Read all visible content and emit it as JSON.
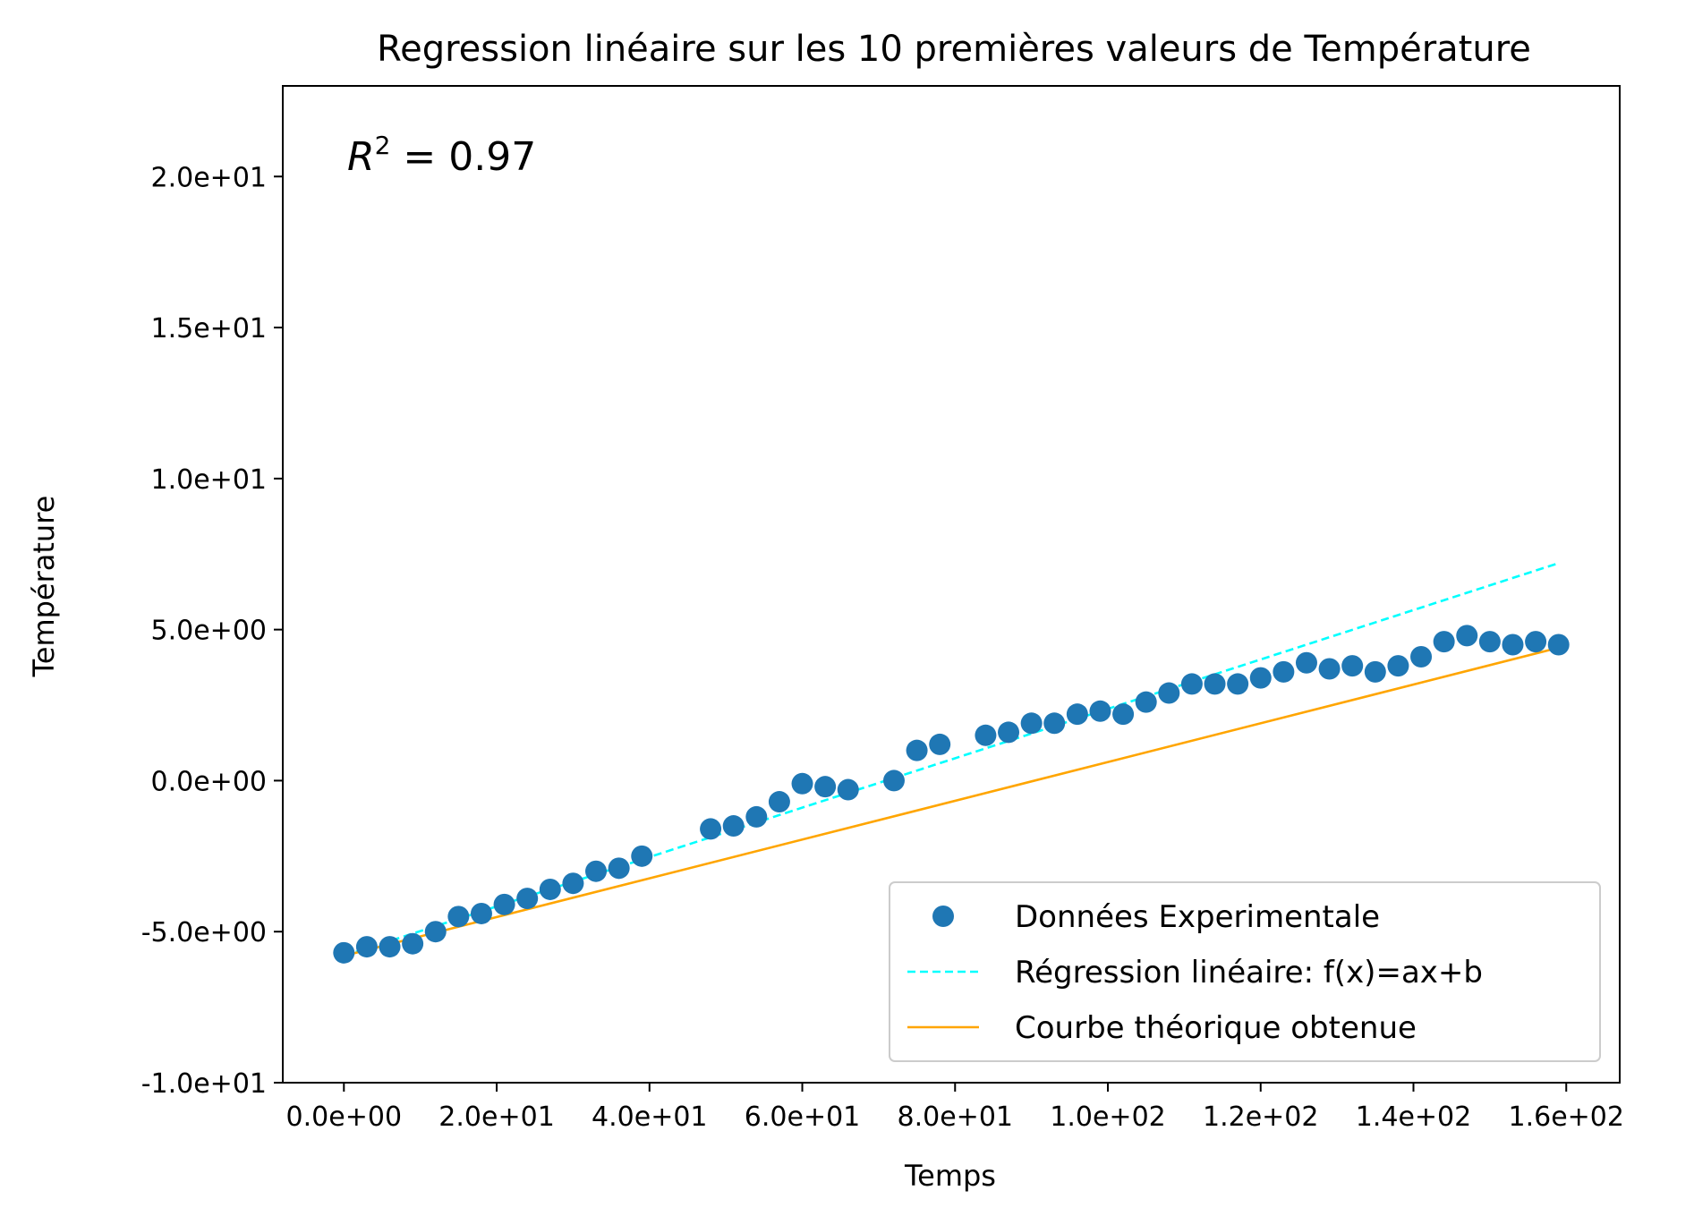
{
  "chart_data": {
    "type": "scatter",
    "title": "Regression linéaire sur les 10 premières valeurs de Température",
    "xlabel": "Temps",
    "ylabel": "Température",
    "xlim": [
      -8,
      167
    ],
    "ylim": [
      -10,
      23
    ],
    "x_ticks": [
      0,
      20,
      40,
      60,
      80,
      100,
      120,
      140,
      160
    ],
    "x_tick_labels": [
      "0.0e+00",
      "2.0e+01",
      "4.0e+01",
      "6.0e+01",
      "8.0e+01",
      "1.0e+02",
      "1.2e+02",
      "1.4e+02",
      "1.6e+02"
    ],
    "y_ticks": [
      -10,
      -5,
      0,
      5,
      10,
      15,
      20
    ],
    "y_tick_labels": [
      "-1.0e+01",
      "-5.0e+00",
      "0.0e+00",
      "5.0e+00",
      "1.0e+01",
      "1.5e+01",
      "2.0e+01"
    ],
    "annotation": {
      "var": "R",
      "sup": "2",
      "rest": " = 0.97"
    },
    "legend_position": "lower-right",
    "grid": false,
    "series": [
      {
        "name": "Données Experimentale",
        "kind": "scatter",
        "color": "#1f77b4",
        "points": [
          [
            0,
            -5.7
          ],
          [
            3,
            -5.5
          ],
          [
            6,
            -5.5
          ],
          [
            9,
            -5.4
          ],
          [
            12,
            -5.0
          ],
          [
            15,
            -4.5
          ],
          [
            18,
            -4.4
          ],
          [
            21,
            -4.1
          ],
          [
            24,
            -3.9
          ],
          [
            27,
            -3.6
          ],
          [
            30,
            -3.4
          ],
          [
            33,
            -3.0
          ],
          [
            36,
            -2.9
          ],
          [
            39,
            -2.5
          ],
          [
            48,
            -1.6
          ],
          [
            51,
            -1.5
          ],
          [
            54,
            -1.2
          ],
          [
            57,
            -0.7
          ],
          [
            60,
            -0.1
          ],
          [
            63,
            -0.2
          ],
          [
            66,
            -0.3
          ],
          [
            72,
            0.0
          ],
          [
            75,
            1.0
          ],
          [
            78,
            1.2
          ],
          [
            84,
            1.5
          ],
          [
            87,
            1.6
          ],
          [
            90,
            1.9
          ],
          [
            93,
            1.9
          ],
          [
            96,
            2.2
          ],
          [
            99,
            2.3
          ],
          [
            102,
            2.2
          ],
          [
            105,
            2.6
          ],
          [
            108,
            2.9
          ],
          [
            111,
            3.2
          ],
          [
            114,
            3.2
          ],
          [
            117,
            3.2
          ],
          [
            120,
            3.4
          ],
          [
            123,
            3.6
          ],
          [
            126,
            3.9
          ],
          [
            129,
            3.7
          ],
          [
            132,
            3.8
          ],
          [
            135,
            3.6
          ],
          [
            138,
            3.8
          ],
          [
            141,
            4.1
          ],
          [
            144,
            4.6
          ],
          [
            147,
            4.8
          ],
          [
            150,
            4.6
          ],
          [
            153,
            4.5
          ],
          [
            156,
            4.6
          ],
          [
            159,
            4.5
          ]
        ]
      },
      {
        "name": "Régression linéaire: f(x)=ax+b",
        "kind": "line",
        "dash": true,
        "color": "#00ffff",
        "points": [
          [
            0,
            -5.8
          ],
          [
            159,
            7.2
          ]
        ]
      },
      {
        "name": "Courbe théorique obtenue",
        "kind": "line",
        "dash": false,
        "color": "#ffa500",
        "points": [
          [
            0,
            -5.8
          ],
          [
            159,
            4.4
          ]
        ]
      }
    ]
  }
}
